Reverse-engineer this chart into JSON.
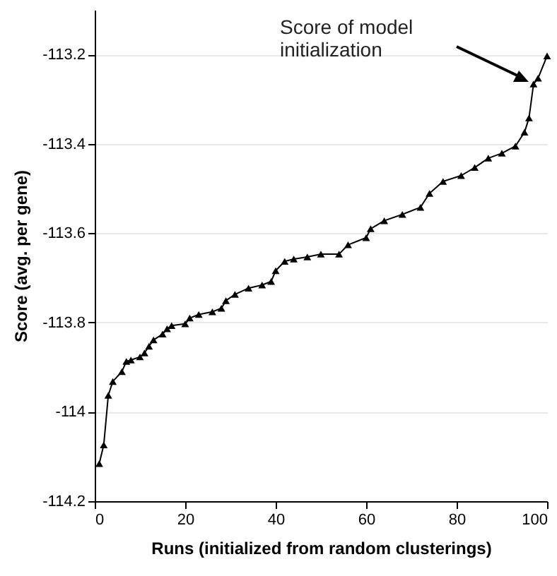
{
  "chart_data": {
    "type": "line",
    "xlabel": "Runs (initialized from random clusterings)",
    "ylabel": "Score (avg. per gene)",
    "x": [
      1,
      2,
      3,
      4,
      6,
      7,
      8,
      10,
      11,
      12,
      13,
      15,
      16,
      17,
      20,
      21,
      23,
      26,
      28,
      29,
      31,
      34,
      37,
      39,
      40,
      42,
      44,
      47,
      50,
      54,
      56,
      60,
      61,
      64,
      68,
      72,
      74,
      77,
      81,
      84,
      87,
      90,
      93,
      95,
      96,
      97,
      98,
      100
    ],
    "series": [
      {
        "color": "#000000",
        "values": [
          -114.116,
          -114.074,
          -113.963,
          -113.932,
          -113.91,
          -113.887,
          -113.884,
          -113.877,
          -113.868,
          -113.853,
          -113.839,
          -113.826,
          -113.814,
          -113.807,
          -113.803,
          -113.79,
          -113.782,
          -113.776,
          -113.768,
          -113.751,
          -113.737,
          -113.723,
          -113.716,
          -113.708,
          -113.684,
          -113.663,
          -113.658,
          -113.653,
          -113.647,
          -113.647,
          -113.626,
          -113.61,
          -113.59,
          -113.572,
          -113.558,
          -113.542,
          -113.511,
          -113.484,
          -113.471,
          -113.453,
          -113.432,
          -113.421,
          -113.405,
          -113.374,
          -113.342,
          -113.266,
          -113.253,
          -113.203
        ]
      }
    ],
    "xlim": [
      0,
      100
    ],
    "xticks": [
      0,
      20,
      40,
      60,
      80,
      100
    ],
    "ylim": [
      -114.2,
      -113.1
    ],
    "yticks": [
      -114.2,
      -114,
      -113.8,
      -113.6,
      -113.4,
      -113.2
    ],
    "grid": "y",
    "marker": "triangle",
    "line_style": "solid",
    "annotations": [
      "Score of model initialization"
    ]
  }
}
